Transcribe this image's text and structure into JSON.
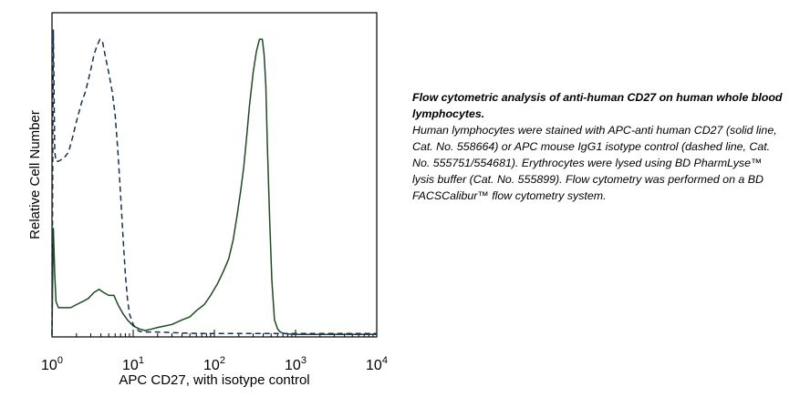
{
  "chart_data": {
    "type": "line",
    "xlabel": "APC CD27, with isotype control",
    "ylabel": "Relative Cell Number",
    "xscale": "log",
    "xlim": [
      1,
      10000
    ],
    "ylim": [
      0,
      1.0
    ],
    "xticks": [
      {
        "value": 1,
        "base": "10",
        "exp": "0"
      },
      {
        "value": 10,
        "base": "10",
        "exp": "1"
      },
      {
        "value": 100,
        "base": "10",
        "exp": "2"
      },
      {
        "value": 1000,
        "base": "10",
        "exp": "3"
      },
      {
        "value": 10000,
        "base": "10",
        "exp": "4"
      }
    ],
    "grid": false,
    "series": [
      {
        "style": "solid",
        "color": "#1f4a24",
        "x": [
          1.0,
          1.04,
          1.08,
          1.12,
          1.2,
          1.4,
          1.7,
          2.0,
          2.4,
          2.8,
          3.3,
          3.8,
          4.3,
          5.0,
          5.8,
          6.5,
          7.5,
          8.5,
          10,
          12,
          14,
          17,
          20,
          25,
          30,
          40,
          50,
          60,
          75,
          90,
          110,
          130,
          150,
          170,
          190,
          210,
          230,
          250,
          270,
          300,
          330,
          360,
          390,
          410,
          430,
          450,
          480,
          510,
          550,
          600,
          650,
          700,
          800,
          900,
          1000,
          1200,
          1500,
          2000,
          3000,
          5000,
          10000
        ],
        "values": [
          0.0,
          0.35,
          0.2,
          0.11,
          0.09,
          0.09,
          0.09,
          0.1,
          0.11,
          0.12,
          0.14,
          0.15,
          0.14,
          0.13,
          0.13,
          0.1,
          0.07,
          0.05,
          0.03,
          0.02,
          0.015,
          0.02,
          0.025,
          0.03,
          0.035,
          0.05,
          0.06,
          0.08,
          0.1,
          0.13,
          0.17,
          0.21,
          0.25,
          0.31,
          0.39,
          0.47,
          0.55,
          0.65,
          0.75,
          0.86,
          0.93,
          0.97,
          0.97,
          0.92,
          0.82,
          0.62,
          0.38,
          0.18,
          0.05,
          0.02,
          0.01,
          0.006,
          0.004,
          0.003,
          0.002,
          0.002,
          0.002,
          0.002,
          0.002,
          0.002,
          0.002
        ]
      },
      {
        "style": "dashed",
        "color": "#1c2f4a",
        "x": [
          1.0,
          1.04,
          1.08,
          1.12,
          1.2,
          1.4,
          1.6,
          1.8,
          2.0,
          2.3,
          2.6,
          3.0,
          3.3,
          3.6,
          3.9,
          4.2,
          4.5,
          5.0,
          5.5,
          6.0,
          6.5,
          7.0,
          7.5,
          8.0,
          8.5,
          9.0,
          10,
          11,
          12,
          14,
          17,
          20,
          30,
          50,
          100,
          200,
          400,
          700,
          1000,
          2000,
          5000,
          10000
        ],
        "values": [
          0.0,
          1.0,
          0.6,
          0.57,
          0.57,
          0.58,
          0.6,
          0.65,
          0.7,
          0.76,
          0.8,
          0.87,
          0.92,
          0.95,
          0.97,
          0.96,
          0.92,
          0.86,
          0.8,
          0.72,
          0.6,
          0.46,
          0.32,
          0.2,
          0.12,
          0.07,
          0.035,
          0.02,
          0.012,
          0.01,
          0.01,
          0.01,
          0.008,
          0.006,
          0.005,
          0.005,
          0.005,
          0.005,
          0.005,
          0.005,
          0.005,
          0.005
        ]
      }
    ]
  },
  "caption": {
    "title": "Flow cytometric analysis of anti-human CD27 on human whole blood lymphocytes.",
    "body": "Human lymphocytes were stained with APC-anti human CD27 (solid line, Cat. No. 558664) or APC mouse IgG1 isotype control (dashed line, Cat. No. 555751/554681). Erythrocytes were lysed using BD PharmLyse™ lysis buffer (Cat. No. 555899).  Flow cytometry was performed on a BD FACSCalibur™ flow cytometry system."
  }
}
